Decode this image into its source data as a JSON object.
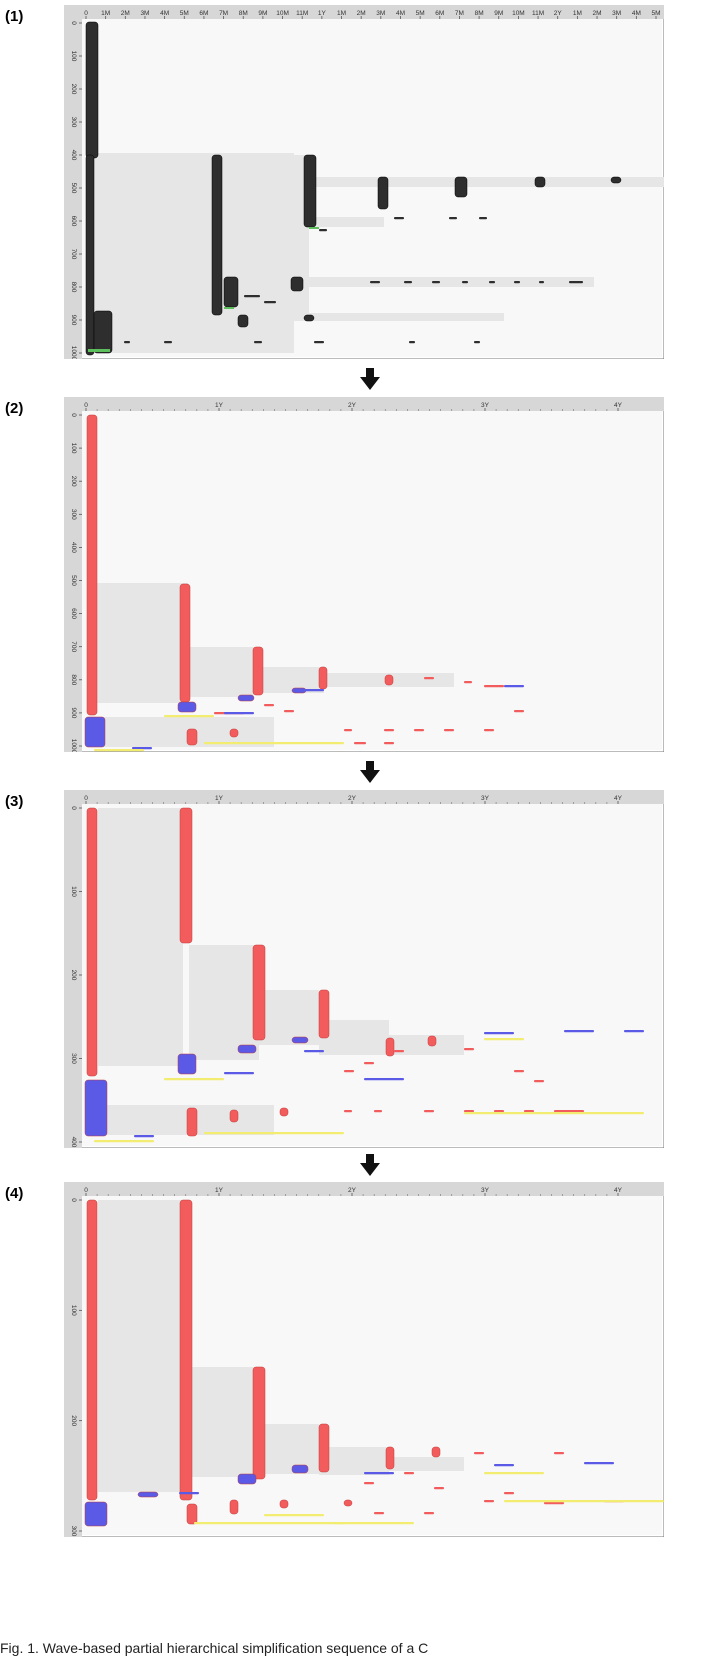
{
  "panels": [
    {
      "label": "(1)",
      "x_ticks": [
        "0",
        "1M",
        "2M",
        "3M",
        "4M",
        "5M",
        "6M",
        "7M",
        "8M",
        "9M",
        "10M",
        "11M",
        "1Y",
        "1M",
        "2M",
        "3M",
        "4M",
        "5M",
        "6M",
        "7M",
        "8M",
        "9M",
        "10M",
        "11M",
        "2Y",
        "1M",
        "2M",
        "3M",
        "4M",
        "5M"
      ],
      "y_ticks": [
        "0",
        "100",
        "200",
        "300",
        "400",
        "500",
        "600",
        "700",
        "800",
        "900",
        "1000"
      ]
    },
    {
      "label": "(2)",
      "x_ticks": [
        "0",
        "1Y",
        "2Y",
        "3Y",
        "4Y"
      ],
      "y_ticks": [
        "0",
        "100",
        "200",
        "300",
        "400",
        "500",
        "600",
        "700",
        "800",
        "900",
        "1000"
      ]
    },
    {
      "label": "(3)",
      "x_ticks": [
        "0",
        "1Y",
        "2Y",
        "3Y",
        "4Y"
      ],
      "y_ticks": [
        "0",
        "100",
        "200",
        "300",
        "400"
      ]
    },
    {
      "label": "(4)",
      "x_ticks": [
        "0",
        "1Y",
        "2Y",
        "3Y",
        "4Y"
      ],
      "y_ticks": [
        "0",
        "100",
        "200",
        "300"
      ]
    }
  ],
  "colors": {
    "dark_bar": "#2e2e2e",
    "red_bar": "#f25c5c",
    "blue_bar": "#5a5ae6",
    "yellow_bar": "#f2ec70",
    "green_accent": "#5cbf5c",
    "band": "#e6e6e6",
    "plot_bg": "#f8f8f8",
    "frame_header": "#d7d7d7"
  },
  "caption": "Fig. 1. Wave-based partial hierarchical simplification sequence of a C"
}
